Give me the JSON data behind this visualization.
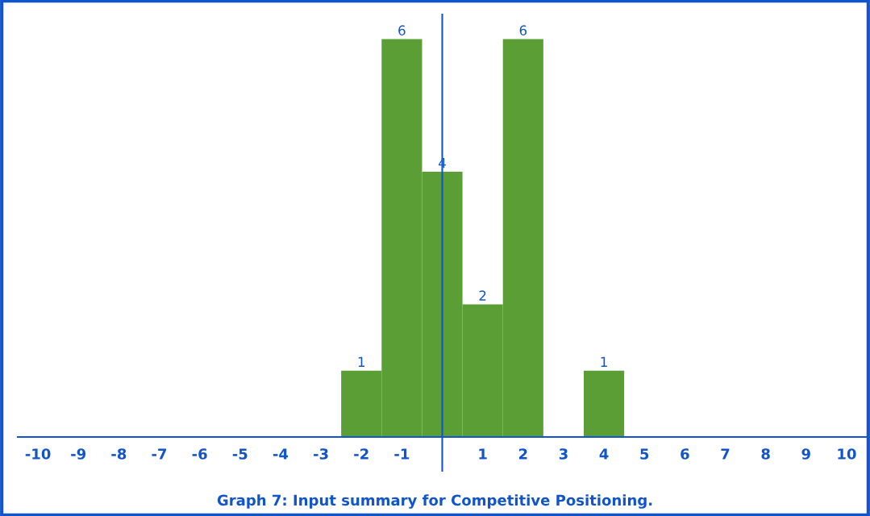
{
  "chart_data": {
    "type": "bar",
    "title": "Graph 7: Input summary for Competitive Positioning.",
    "x": [
      -10,
      -9,
      -8,
      -7,
      -6,
      -5,
      -4,
      -3,
      -2,
      -1,
      0,
      1,
      2,
      3,
      4,
      5,
      6,
      7,
      8,
      9,
      10
    ],
    "values": [
      0,
      0,
      0,
      0,
      0,
      0,
      0,
      0,
      1,
      6,
      4,
      2,
      6,
      0,
      1,
      0,
      0,
      0,
      0,
      0,
      0
    ],
    "value_labels": [
      null,
      null,
      null,
      null,
      null,
      null,
      null,
      null,
      "1",
      "6",
      "4",
      "2",
      "6",
      null,
      "1",
      null,
      null,
      null,
      null,
      null,
      null
    ],
    "color": "#5b9e35",
    "xlim": [
      -10.5,
      10.5
    ],
    "xticks": [
      -10,
      -9,
      -8,
      -7,
      -6,
      -5,
      -4,
      -3,
      -2,
      -1,
      1,
      2,
      3,
      4,
      5,
      6,
      7,
      8,
      9,
      10
    ],
    "ref_lines": [
      {
        "axis": "x",
        "value": 0,
        "color": "#1155cc"
      }
    ],
    "tick_labels": "x",
    "grid": false,
    "legend": false
  }
}
